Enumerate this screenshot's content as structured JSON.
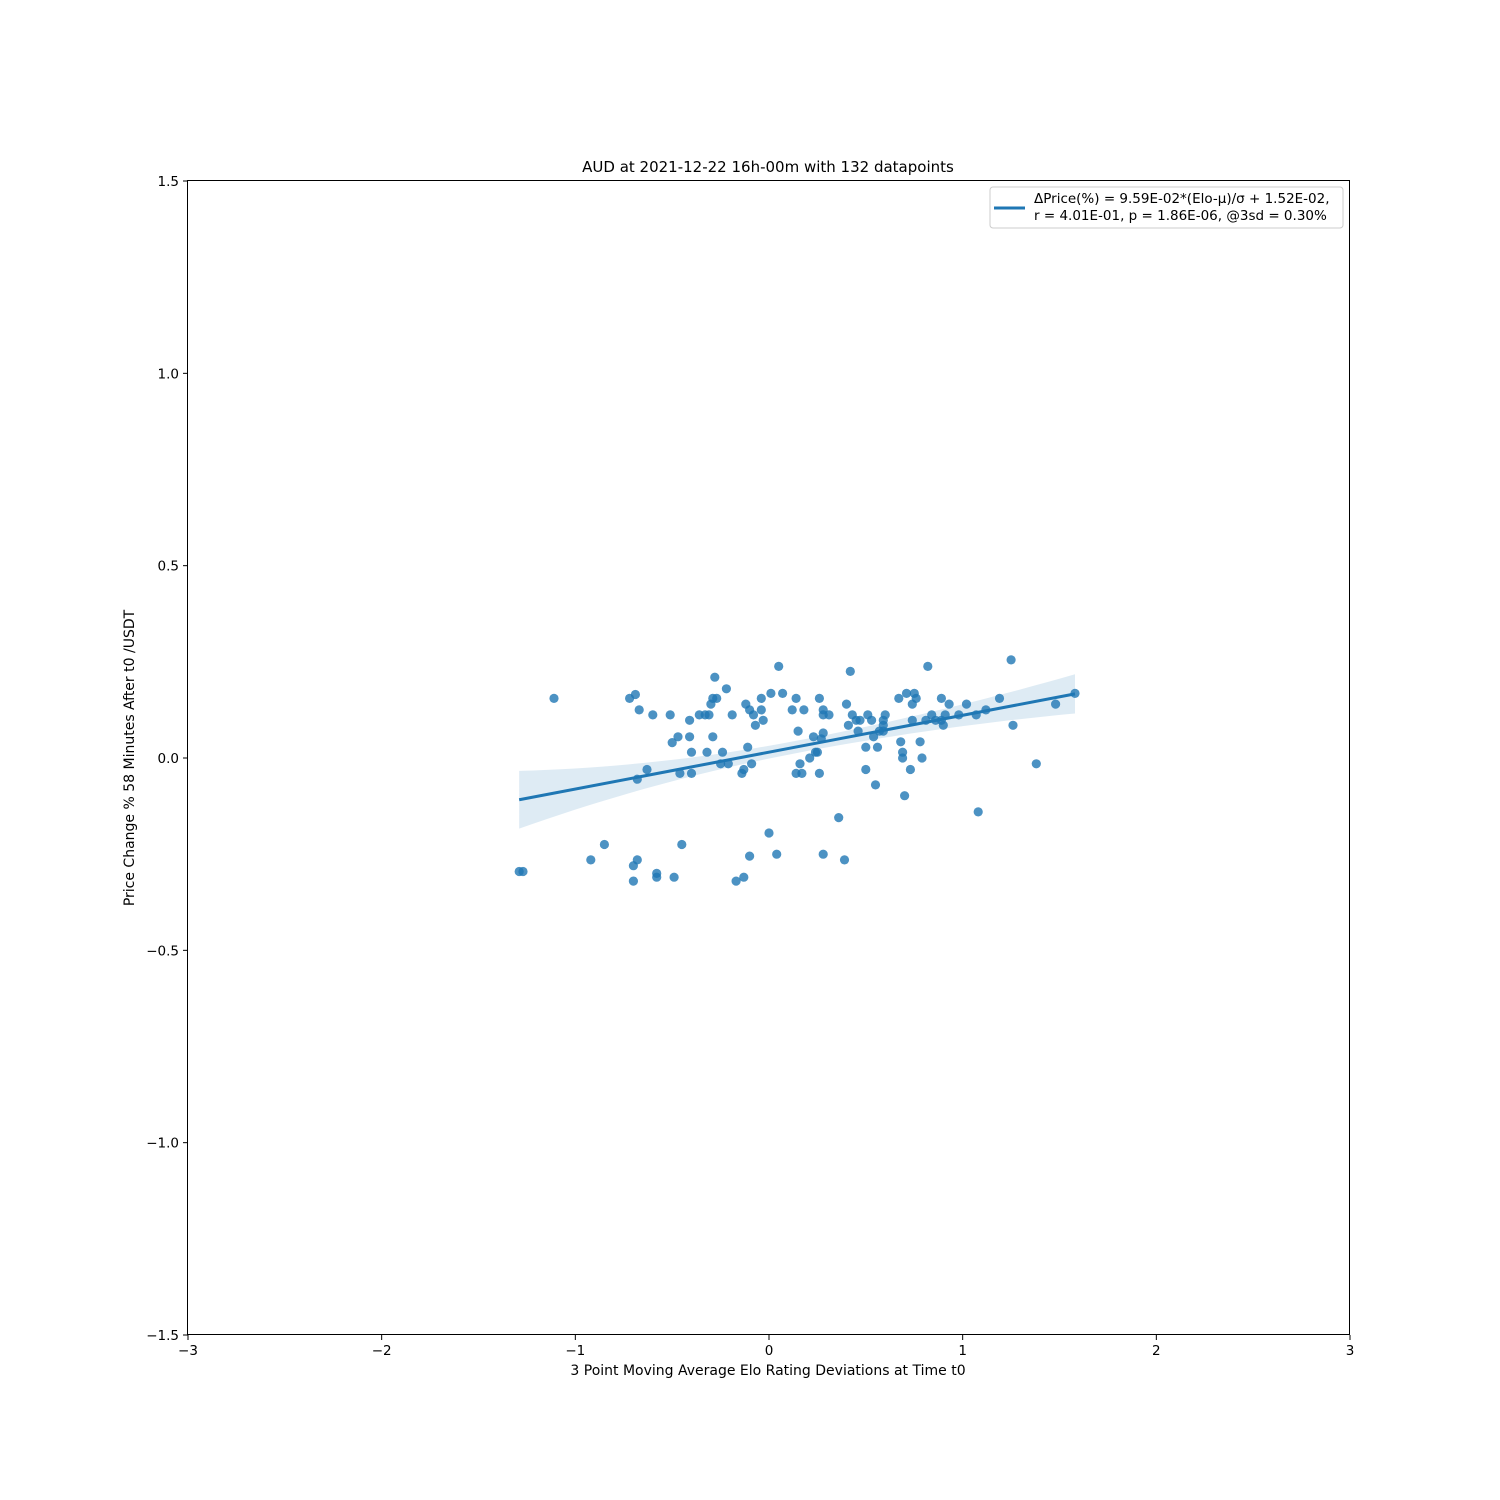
{
  "colors": {
    "points": "#1f77b4",
    "line": "#1f77b4",
    "band": "#1f77b4",
    "axes": "#000000",
    "background": "#ffffff"
  },
  "chart_data": {
    "type": "scatter",
    "title": "AUD at 2021-12-22 16h-00m with 132 datapoints",
    "xlabel": "3 Point Moving Average Elo Rating Deviations at Time t0",
    "ylabel": "Price Change % 58 Minutes After t0 /USDT",
    "xlim": [
      -3,
      3
    ],
    "ylim": [
      -1.5,
      1.5
    ],
    "xticks": [
      -3,
      -2,
      -1,
      0,
      1,
      2,
      3
    ],
    "yticks": [
      -1.5,
      -1.0,
      -0.5,
      0.0,
      0.5,
      1.0,
      1.5
    ],
    "xtick_labels": [
      "−3",
      "−2",
      "−1",
      "0",
      "1",
      "2",
      "3"
    ],
    "ytick_labels": [
      "−1.5",
      "−1.0",
      "−0.5",
      "0.0",
      "0.5",
      "1.0",
      "1.5"
    ],
    "grid": false,
    "legend": {
      "position": "top-right",
      "line1": "ΔPrice(%) = 9.59E-02*(Elo-μ)/σ + 1.52E-02,",
      "line2": "r = 4.01E-01, p = 1.86E-06, @3sd = 0.30%"
    },
    "regression": {
      "slope": 0.0959,
      "intercept": 0.0152,
      "x_range": [
        -1.29,
        1.58
      ],
      "ci_half_width_left": 0.075,
      "ci_half_width_center": 0.016,
      "ci_half_width_right": 0.051
    },
    "points": [
      [
        -1.29,
        -0.295
      ],
      [
        -1.27,
        -0.295
      ],
      [
        -1.11,
        0.155
      ],
      [
        -0.92,
        -0.265
      ],
      [
        -0.85,
        -0.225
      ],
      [
        -0.72,
        0.155
      ],
      [
        -0.7,
        -0.28
      ],
      [
        -0.7,
        -0.32
      ],
      [
        -0.69,
        0.165
      ],
      [
        -0.68,
        -0.055
      ],
      [
        -0.68,
        -0.265
      ],
      [
        -0.67,
        0.125
      ],
      [
        -0.63,
        -0.03
      ],
      [
        -0.6,
        0.112
      ],
      [
        -0.58,
        -0.3
      ],
      [
        -0.58,
        -0.31
      ],
      [
        -0.51,
        0.112
      ],
      [
        -0.5,
        0.04
      ],
      [
        -0.49,
        -0.31
      ],
      [
        -0.47,
        0.055
      ],
      [
        -0.46,
        -0.04
      ],
      [
        -0.45,
        -0.225
      ],
      [
        -0.41,
        0.055
      ],
      [
        -0.41,
        0.098
      ],
      [
        -0.4,
        0.015
      ],
      [
        -0.4,
        -0.04
      ],
      [
        -0.36,
        0.112
      ],
      [
        -0.33,
        0.112
      ],
      [
        -0.32,
        0.015
      ],
      [
        -0.31,
        0.112
      ],
      [
        -0.3,
        0.14
      ],
      [
        -0.29,
        0.155
      ],
      [
        -0.29,
        0.055
      ],
      [
        -0.28,
        0.21
      ],
      [
        -0.27,
        0.155
      ],
      [
        -0.25,
        -0.015
      ],
      [
        -0.24,
        0.015
      ],
      [
        -0.22,
        0.18
      ],
      [
        -0.21,
        -0.015
      ],
      [
        -0.19,
        0.112
      ],
      [
        -0.17,
        -0.32
      ],
      [
        -0.14,
        -0.04
      ],
      [
        -0.13,
        -0.03
      ],
      [
        -0.13,
        -0.31
      ],
      [
        -0.12,
        0.14
      ],
      [
        -0.11,
        0.028
      ],
      [
        -0.1,
        0.125
      ],
      [
        -0.1,
        -0.255
      ],
      [
        -0.09,
        -0.015
      ],
      [
        -0.08,
        0.112
      ],
      [
        -0.07,
        0.085
      ],
      [
        -0.04,
        0.125
      ],
      [
        -0.04,
        0.155
      ],
      [
        -0.03,
        0.098
      ],
      [
        0.0,
        -0.195
      ],
      [
        0.01,
        0.168
      ],
      [
        0.04,
        -0.25
      ],
      [
        0.05,
        0.238
      ],
      [
        0.07,
        0.168
      ],
      [
        0.12,
        0.125
      ],
      [
        0.14,
        0.155
      ],
      [
        0.14,
        -0.04
      ],
      [
        0.15,
        0.07
      ],
      [
        0.16,
        -0.015
      ],
      [
        0.17,
        -0.04
      ],
      [
        0.18,
        0.125
      ],
      [
        0.21,
        0.0
      ],
      [
        0.23,
        0.055
      ],
      [
        0.24,
        0.015
      ],
      [
        0.25,
        0.015
      ],
      [
        0.26,
        -0.04
      ],
      [
        0.26,
        0.155
      ],
      [
        0.27,
        0.05
      ],
      [
        0.28,
        -0.25
      ],
      [
        0.28,
        0.125
      ],
      [
        0.28,
        0.112
      ],
      [
        0.28,
        0.065
      ],
      [
        0.31,
        0.112
      ],
      [
        0.36,
        -0.155
      ],
      [
        0.39,
        -0.265
      ],
      [
        0.4,
        0.14
      ],
      [
        0.41,
        0.085
      ],
      [
        0.42,
        0.225
      ],
      [
        0.43,
        0.112
      ],
      [
        0.45,
        0.098
      ],
      [
        0.46,
        0.07
      ],
      [
        0.47,
        0.098
      ],
      [
        0.5,
        0.028
      ],
      [
        0.5,
        -0.03
      ],
      [
        0.51,
        0.112
      ],
      [
        0.53,
        0.098
      ],
      [
        0.54,
        0.055
      ],
      [
        0.55,
        -0.07
      ],
      [
        0.56,
        0.028
      ],
      [
        0.57,
        0.07
      ],
      [
        0.59,
        0.085
      ],
      [
        0.59,
        0.07
      ],
      [
        0.59,
        0.098
      ],
      [
        0.6,
        0.112
      ],
      [
        0.67,
        0.155
      ],
      [
        0.68,
        0.042
      ],
      [
        0.69,
        0.0
      ],
      [
        0.69,
        0.015
      ],
      [
        0.7,
        -0.098
      ],
      [
        0.71,
        0.168
      ],
      [
        0.73,
        -0.03
      ],
      [
        0.74,
        0.098
      ],
      [
        0.74,
        0.14
      ],
      [
        0.75,
        0.168
      ],
      [
        0.76,
        0.155
      ],
      [
        0.78,
        0.042
      ],
      [
        0.79,
        0.0
      ],
      [
        0.81,
        0.098
      ],
      [
        0.82,
        0.238
      ],
      [
        0.84,
        0.112
      ],
      [
        0.86,
        0.098
      ],
      [
        0.89,
        0.155
      ],
      [
        0.89,
        0.098
      ],
      [
        0.9,
        0.085
      ],
      [
        0.91,
        0.112
      ],
      [
        0.93,
        0.14
      ],
      [
        0.98,
        0.112
      ],
      [
        1.02,
        0.14
      ],
      [
        1.07,
        0.112
      ],
      [
        1.08,
        -0.14
      ],
      [
        1.12,
        0.125
      ],
      [
        1.19,
        0.155
      ],
      [
        1.25,
        0.255
      ],
      [
        1.26,
        0.085
      ],
      [
        1.38,
        -0.015
      ],
      [
        1.48,
        0.14
      ],
      [
        1.58,
        0.168
      ]
    ]
  }
}
